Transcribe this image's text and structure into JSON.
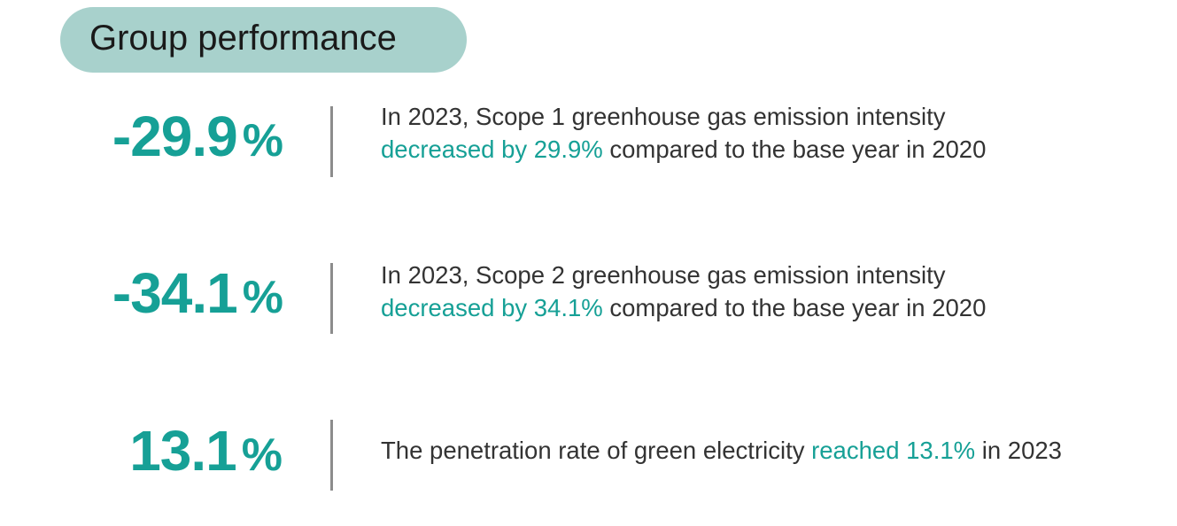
{
  "header": {
    "title": "Group performance"
  },
  "colors": {
    "accent": "#16a096",
    "pill_background": "#a8d1cc",
    "text": "#333333",
    "divider": "#8c8c8c"
  },
  "stats": [
    {
      "value": "-29.9",
      "unit": "%",
      "desc_before": "In 2023, Scope 1 greenhouse gas emission intensity ",
      "desc_highlight": "decreased by 29.9%",
      "desc_after": " compared to the base year in 2020"
    },
    {
      "value": "-34.1",
      "unit": "%",
      "desc_before": "In 2023, Scope 2 greenhouse gas emission intensity ",
      "desc_highlight": "decreased by 34.1%",
      "desc_after": " compared to the base year in 2020"
    },
    {
      "value": "13.1",
      "unit": "%",
      "desc_before": "The penetration rate of green electricity ",
      "desc_highlight": "reached 13.1%",
      "desc_after": " in 2023"
    }
  ]
}
